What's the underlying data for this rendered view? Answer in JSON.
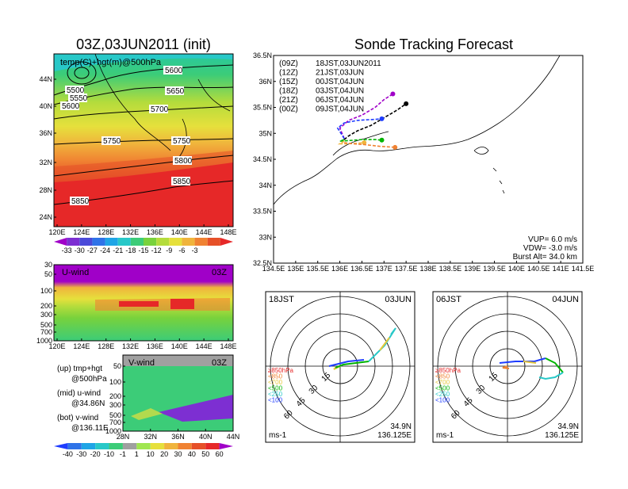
{
  "left_title": "03Z,03JUN2011 (init)",
  "right_title": "Sonde Tracking Forecast",
  "map500": {
    "label": "temp(C)+hgt(m)@500hPa",
    "lon_ticks": [
      "120E",
      "124E",
      "128E",
      "132E",
      "136E",
      "140E",
      "144E",
      "148E"
    ],
    "lat_ticks": [
      "44N",
      "40N",
      "36N",
      "32N",
      "28N",
      "24N"
    ],
    "contour_labels": [
      "5500",
      "5550",
      "5600",
      "5600",
      "5650",
      "5650",
      "5700",
      "5750",
      "5750",
      "5800",
      "5850",
      "5850"
    ],
    "colorbar_ticks": [
      "-33",
      "-30",
      "-27",
      "-24",
      "-21",
      "-18",
      "-15",
      "-12",
      "-9",
      "-6",
      "-3"
    ],
    "colorbar_colors": [
      "#a000c8",
      "#7d2fd2",
      "#4a4ad9",
      "#2f73e8",
      "#1fa5e6",
      "#28c8c8",
      "#3ccc78",
      "#78d23c",
      "#b4dc3c",
      "#e6e03c",
      "#f0b43c",
      "#f08232",
      "#e65028",
      "#e62828"
    ]
  },
  "uwind": {
    "label": "U-wind",
    "time": "03Z",
    "lon_ticks": [
      "120E",
      "124E",
      "128E",
      "132E",
      "136E",
      "140E",
      "144E",
      "148E"
    ],
    "p_ticks": [
      "30",
      "50",
      "100",
      "200",
      "300",
      "500",
      "700",
      "1000"
    ]
  },
  "vwind": {
    "label": "V-wind",
    "time": "03Z",
    "lat_ticks": [
      "28N",
      "32N",
      "36N",
      "40N",
      "44N"
    ],
    "p_ticks": [
      "50",
      "100",
      "200",
      "300",
      "500",
      "700",
      "1000"
    ],
    "colorbar_ticks": [
      "-40",
      "-30",
      "-20",
      "-10",
      "-1",
      "1",
      "10",
      "20",
      "30",
      "40",
      "50",
      "60"
    ],
    "colorbar_colors": [
      "#1e3cff",
      "#2f73e8",
      "#1fa5e6",
      "#28c8c8",
      "#3ccc78",
      "#a0a0a0",
      "#a0e650",
      "#e6e03c",
      "#f0b43c",
      "#f08232",
      "#e65028",
      "#e62828",
      "#a000c8"
    ]
  },
  "legend_notes": [
    {
      "line1": "(up) tmp+hgt",
      "line2": "@500hPa"
    },
    {
      "line1": "(mid) u-wind",
      "line2": "@34.86N"
    },
    {
      "line1": "(bot) v-wind",
      "line2": "@136.11E"
    }
  ],
  "track": {
    "lon_ticks": [
      "134.5E",
      "135E",
      "135.5E",
      "136E",
      "136.5E",
      "137E",
      "137.5E",
      "138E",
      "138.5E",
      "139E",
      "139.5E",
      "140E",
      "140.5E",
      "141E",
      "141.5E"
    ],
    "lat_ticks": [
      "36.5N",
      "36N",
      "35.5N",
      "35N",
      "34.5N",
      "34N",
      "33.5N",
      "33N",
      "32.5N"
    ],
    "runs": [
      {
        "code": "(09Z)",
        "text": "18JST,03JUN2011",
        "color": "#000000",
        "end": [
          137.5,
          35.57
        ]
      },
      {
        "code": "(12Z)",
        "text": "21JST,03JUN",
        "color": "#a000c8",
        "end": [
          137.2,
          35.76
        ]
      },
      {
        "code": "(15Z)",
        "text": "00JST,04JUN",
        "color": "#1e3cff",
        "end": [
          136.95,
          35.28
        ]
      },
      {
        "code": "(18Z)",
        "text": "03JST,04JUN",
        "color": "#00b400",
        "end": [
          136.95,
          34.87
        ]
      },
      {
        "code": "(21Z)",
        "text": "06JST,04JUN",
        "color": "#f0b43c",
        "end": [
          136.55,
          34.82
        ]
      },
      {
        "code": "(00Z)",
        "text": "09JST,04JUN",
        "color": "#f08232",
        "end": [
          137.25,
          34.73
        ]
      }
    ],
    "params": [
      "VUP= 6.0 m/s",
      "VDW= -3.0 m/s",
      "Burst Alt= 34.0 km"
    ]
  },
  "hodo1": {
    "left_label": "18JST",
    "right_label": "03JUN",
    "ring_labels": [
      "15",
      "30",
      "45",
      "60"
    ],
    "pressure_legend": [
      {
        "text": "≥850hPa",
        "color": "#e62828"
      },
      {
        "text": "<850",
        "color": "#f08232"
      },
      {
        "text": "<700",
        "color": "#e6c83c"
      },
      {
        "text": "<500",
        "color": "#00b400"
      },
      {
        "text": "<250",
        "color": "#28c8c8"
      },
      {
        "text": "<100",
        "color": "#1e3cff"
      }
    ],
    "unit": "ms-1",
    "loc_lat": "34.9N",
    "loc_lon": "136.125E"
  },
  "hodo2": {
    "left_label": "06JST",
    "right_label": "04JUN",
    "ring_labels": [
      "15",
      "30",
      "45",
      "60"
    ],
    "pressure_legend": [
      {
        "text": "≥850hPa",
        "color": "#e62828"
      },
      {
        "text": "<850",
        "color": "#f08232"
      },
      {
        "text": "<700",
        "color": "#e6c83c"
      },
      {
        "text": "<500",
        "color": "#00b400"
      },
      {
        "text": "<250",
        "color": "#28c8c8"
      },
      {
        "text": "<100",
        "color": "#1e3cff"
      }
    ],
    "unit": "ms-1",
    "loc_lat": "34.9N",
    "loc_lon": "136.125E"
  },
  "chart_data": [
    {
      "type": "heatmap",
      "title": "03Z,03JUN2011 (init)",
      "subtitle": "temp(C)+hgt(m)@500hPa",
      "xlim": [
        120,
        150
      ],
      "ylim": [
        22,
        48
      ],
      "height_contours": [
        5500,
        5550,
        5600,
        5650,
        5700,
        5750,
        5800,
        5850
      ],
      "colorbar": [
        -33,
        -30,
        -27,
        -24,
        -21,
        -18,
        -15,
        -12,
        -9,
        -6,
        -3
      ]
    },
    {
      "type": "heatmap",
      "title": "U-wind",
      "xlim": [
        120,
        150
      ],
      "pressure_levels": [
        30,
        50,
        100,
        200,
        300,
        500,
        700,
        1000
      ]
    },
    {
      "type": "heatmap",
      "title": "V-wind",
      "xlim": [
        28,
        44
      ],
      "pressure_levels": [
        50,
        100,
        200,
        300,
        500,
        700,
        1000
      ],
      "colorbar": [
        -40,
        -30,
        -20,
        -10,
        -1,
        1,
        10,
        20,
        30,
        40,
        50,
        60
      ]
    },
    {
      "type": "line",
      "title": "Sonde Tracking Forecast",
      "xlim": [
        134.5,
        141.5
      ],
      "ylim": [
        32.5,
        36.5
      ],
      "series": [
        {
          "name": "(09Z) 18JST,03JUN2011",
          "x": [
            136.1,
            136.2,
            136.4,
            136.7,
            137.0,
            137.3,
            137.5
          ],
          "y": [
            34.88,
            34.95,
            35.05,
            35.15,
            35.3,
            35.45,
            35.57
          ]
        },
        {
          "name": "(12Z) 21JST,03JUN",
          "x": [
            136.1,
            136.0,
            136.2,
            136.5,
            136.8,
            137.0,
            137.2
          ],
          "y": [
            34.9,
            35.1,
            35.25,
            35.35,
            35.5,
            35.65,
            35.76
          ]
        },
        {
          "name": "(15Z) 00JST,04JUN",
          "x": [
            136.1,
            135.95,
            136.1,
            136.4,
            136.6,
            136.8,
            136.95
          ],
          "y": [
            34.9,
            35.1,
            35.2,
            35.25,
            35.26,
            35.27,
            35.28
          ]
        },
        {
          "name": "(18Z) 03JST,04JUN",
          "x": [
            136.1,
            136.0,
            136.2,
            136.5,
            136.8,
            136.95
          ],
          "y": [
            34.88,
            34.85,
            34.86,
            34.88,
            34.88,
            34.87
          ]
        },
        {
          "name": "(21Z) 06JST,04JUN",
          "x": [
            136.1,
            136.0,
            136.2,
            136.4,
            136.55
          ],
          "y": [
            34.85,
            34.8,
            34.8,
            34.81,
            34.82
          ]
        },
        {
          "name": "(00Z) 09JST,04JUN",
          "x": [
            136.1,
            136.3,
            136.6,
            136.9,
            137.25
          ],
          "y": [
            34.82,
            34.8,
            34.78,
            34.75,
            34.73
          ]
        }
      ]
    }
  ]
}
